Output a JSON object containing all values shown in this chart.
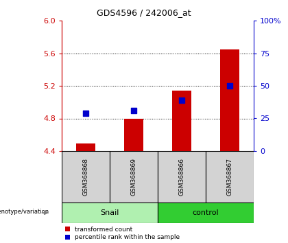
{
  "title": "GDS4596 / 242006_at",
  "samples": [
    "GSM368868",
    "GSM368869",
    "GSM368866",
    "GSM368867"
  ],
  "groups": [
    "Snail",
    "Snail",
    "control",
    "control"
  ],
  "red_bars": [
    4.49,
    4.8,
    5.14,
    5.65
  ],
  "blue_dots": [
    4.86,
    4.9,
    5.02,
    5.2
  ],
  "ylim_left": [
    4.4,
    6.0
  ],
  "yticks_left": [
    4.4,
    4.8,
    5.2,
    5.6,
    6.0
  ],
  "yticks_right": [
    0,
    25,
    50,
    75,
    100
  ],
  "ybase": 4.4,
  "left_color": "#CC0000",
  "right_color": "#0000CC",
  "bar_width": 0.4,
  "dot_size": 40,
  "legend_red": "transformed count",
  "legend_blue": "percentile rank within the sample",
  "group_label_snail": "Snail",
  "group_label_control": "control",
  "bg_sample": "#D3D3D3",
  "bg_snail": "#B0F0B0",
  "bg_control": "#32CD32",
  "grid_ticks": [
    4.8,
    5.2,
    5.6
  ]
}
